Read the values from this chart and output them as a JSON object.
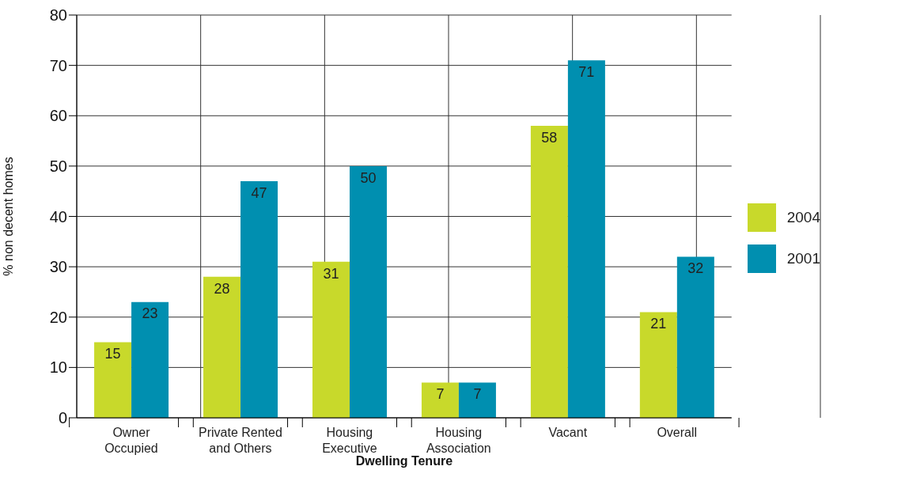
{
  "chart_data": {
    "type": "bar",
    "xlabel": "Dwelling Tenure",
    "ylabel": "% non decent homes",
    "categories": [
      "Owner Occupied",
      "Private Rented and Others",
      "Housing Executive",
      "Housing Association",
      "Vacant",
      "Overall"
    ],
    "series": [
      {
        "name": "2004",
        "color": "#c8d92b",
        "values": [
          15,
          28,
          31,
          7,
          58,
          21
        ]
      },
      {
        "name": "2001",
        "color": "#008fb0",
        "values": [
          23,
          47,
          50,
          7,
          71,
          32
        ]
      }
    ],
    "ylim": [
      0,
      80
    ],
    "yticks": [
      0,
      10,
      20,
      30,
      40,
      50,
      60,
      70,
      80
    ],
    "grid": true,
    "legend": "right",
    "data_labels": true
  }
}
